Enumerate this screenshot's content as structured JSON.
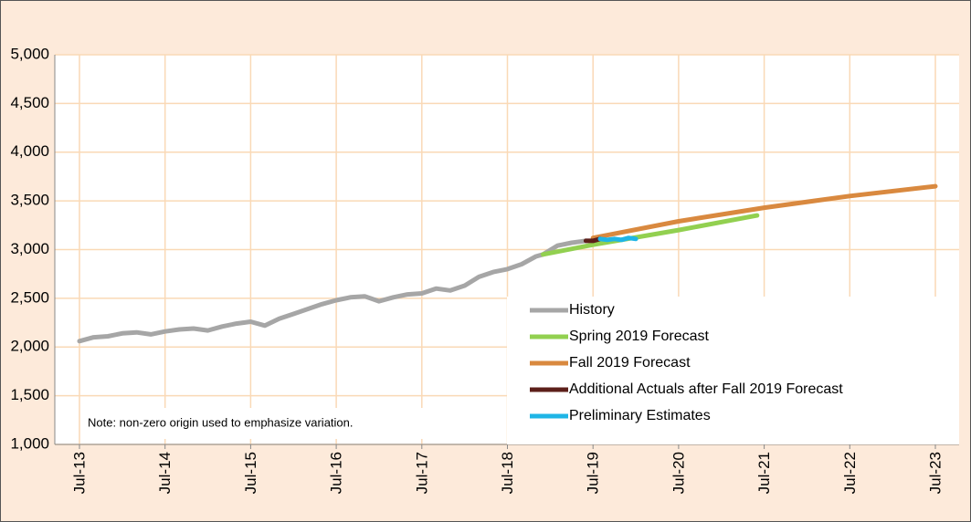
{
  "chart_data": {
    "type": "line",
    "note": "Note: non-zero origin used to emphasize variation.",
    "xlim": [
      "2013-07",
      "2023-07"
    ],
    "xticks": [
      {
        "value": "2013-07",
        "label": "Jul-13"
      },
      {
        "value": "2014-07",
        "label": "Jul-14"
      },
      {
        "value": "2015-07",
        "label": "Jul-15"
      },
      {
        "value": "2016-07",
        "label": "Jul-16"
      },
      {
        "value": "2017-07",
        "label": "Jul-17"
      },
      {
        "value": "2018-07",
        "label": "Jul-18"
      },
      {
        "value": "2019-07",
        "label": "Jul-19"
      },
      {
        "value": "2020-07",
        "label": "Jul-20"
      },
      {
        "value": "2021-07",
        "label": "Jul-21"
      },
      {
        "value": "2022-07",
        "label": "Jul-22"
      },
      {
        "value": "2023-07",
        "label": "Jul-23"
      }
    ],
    "ylim": [
      1000,
      5000
    ],
    "yticks": [
      {
        "value": 1000,
        "label": "1,000"
      },
      {
        "value": 1500,
        "label": "1,500"
      },
      {
        "value": 2000,
        "label": "2,000"
      },
      {
        "value": 2500,
        "label": "2,500"
      },
      {
        "value": 3000,
        "label": "3,000"
      },
      {
        "value": 3500,
        "label": "3,500"
      },
      {
        "value": 4000,
        "label": "4,000"
      },
      {
        "value": 4500,
        "label": "4,500"
      },
      {
        "value": 5000,
        "label": "5,000"
      }
    ],
    "grid": true,
    "series": [
      {
        "name": "History",
        "color": "#a6a6a6",
        "x": [
          "2013-07",
          "2013-09",
          "2013-11",
          "2014-01",
          "2014-03",
          "2014-05",
          "2014-07",
          "2014-09",
          "2014-11",
          "2015-01",
          "2015-03",
          "2015-05",
          "2015-07",
          "2015-09",
          "2015-11",
          "2016-01",
          "2016-03",
          "2016-05",
          "2016-07",
          "2016-09",
          "2016-11",
          "2017-01",
          "2017-03",
          "2017-05",
          "2017-07",
          "2017-09",
          "2017-11",
          "2018-01",
          "2018-03",
          "2018-05",
          "2018-07",
          "2018-09",
          "2018-11",
          "2018-12",
          "2019-02",
          "2019-04",
          "2019-06"
        ],
        "values": [
          2060,
          2100,
          2110,
          2140,
          2150,
          2130,
          2160,
          2180,
          2190,
          2170,
          2210,
          2240,
          2260,
          2220,
          2290,
          2340,
          2390,
          2440,
          2480,
          2510,
          2520,
          2470,
          2510,
          2540,
          2550,
          2600,
          2580,
          2630,
          2720,
          2770,
          2800,
          2850,
          2930,
          2950,
          3040,
          3070,
          3090
        ]
      },
      {
        "name": "Spring 2019 Forecast",
        "color": "#92d050",
        "x": [
          "2018-12",
          "2019-07",
          "2020-07",
          "2021-06"
        ],
        "values": [
          2950,
          3050,
          3200,
          3350
        ]
      },
      {
        "name": "Fall 2019 Forecast",
        "color": "#d9893f",
        "x": [
          "2019-07",
          "2020-07",
          "2021-07",
          "2022-07",
          "2023-07"
        ],
        "values": [
          3120,
          3290,
          3430,
          3550,
          3650
        ]
      },
      {
        "name": "Additional Actuals after Fall 2019 Forecast",
        "color": "#5c1f1a",
        "x": [
          "2019-06",
          "2019-07",
          "2019-08"
        ],
        "values": [
          3090,
          3090,
          3110
        ]
      },
      {
        "name": "Preliminary Estimates",
        "color": "#1fb5e6",
        "x": [
          "2019-08",
          "2019-09",
          "2019-10",
          "2019-11",
          "2019-12",
          "2020-01"
        ],
        "values": [
          3110,
          3100,
          3110,
          3100,
          3120,
          3110
        ]
      }
    ]
  }
}
